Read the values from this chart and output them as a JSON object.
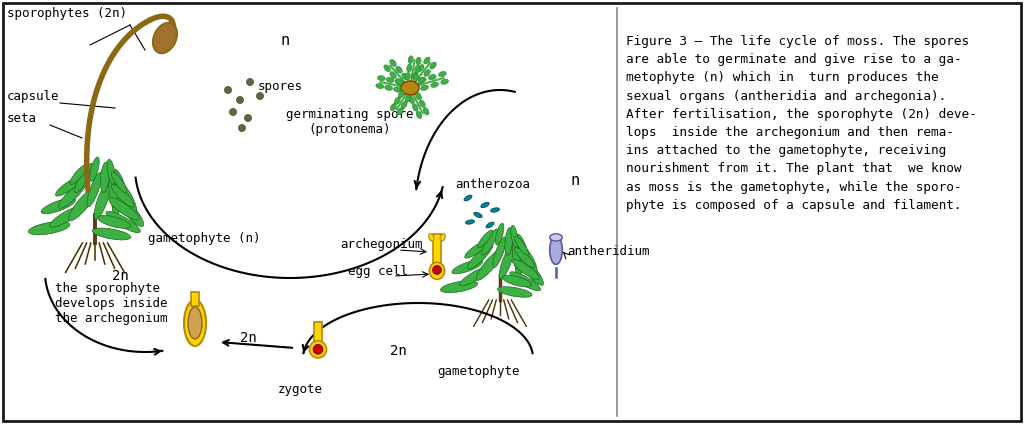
{
  "bg_color": "#ffffff",
  "border_color": "#1a1a1a",
  "text_color": "#000000",
  "figure_text": "Figure 3 – The life cycle of moss. The spores\nare able to germinate and give rise to a ga-\nmetophyte (n) which in  turn produces the\nsexual organs (antheridia and archegonia).\nAfter fertilisation, the sporophyte (2n) deve-\nlops  inside the archegonium and then rema-\nins attached to the gametophyte, receiving\nnourishment from it. The plant that  we know\nas moss is the gametophyte, while the sporo-\nphyte is composed of a capsule and filament.",
  "labels": {
    "sporophytes": "sporophytes (2n)",
    "capsule": "capsule",
    "seta": "seta",
    "spores": "spores",
    "germinating": "germinating spore\n(protonema)",
    "n_top": "n",
    "n_right": "n",
    "gametophyte_n": "gametophyte (n)",
    "archegonium": "archegonium",
    "egg_cell": "egg cell",
    "antherozoa": "antherozoa",
    "antheridium": "antheridium",
    "gametophyte": "gametophyte",
    "zygote": "zygote",
    "sporophyte_develops": "the sporophyte\ndevelops inside\nthe archegonium",
    "2n_left": "2n",
    "2n_bottom": "2n"
  },
  "green_color": "#3cb043",
  "dark_green": "#1a6b1a",
  "brown_color": "#8B6914",
  "yellow_color": "#FFD700",
  "yellow_dark": "#B8860B",
  "tan_color": "#D2B48C",
  "red_color": "#CC0000",
  "blue_light": "#9999cc",
  "teal_color": "#008080",
  "font_size_labels": 9,
  "font_size_figure": 9.2,
  "monospace_font": "DejaVu Sans Mono"
}
